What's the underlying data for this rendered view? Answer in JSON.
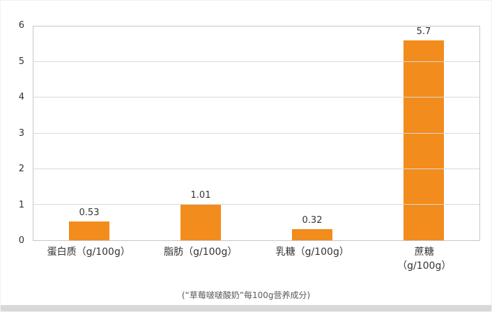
{
  "chart_data": {
    "type": "bar",
    "categories": [
      "蛋白质（g/100g）",
      "脂肪（g/100g）",
      "乳糖（g/100g）",
      "蔗糖\n（g/100g）"
    ],
    "values": [
      0.53,
      1.01,
      0.32,
      5.7
    ],
    "value_labels": [
      "0.53",
      "1.01",
      "0.32",
      "5.7"
    ],
    "title": "",
    "xlabel": "",
    "ylabel": "",
    "ylim": [
      0,
      6
    ],
    "yticks": [
      0,
      1,
      2,
      3,
      4,
      5,
      6
    ],
    "grid": true,
    "legend": "none",
    "bar_color": "#F28C1C",
    "grid_color": "#d9d9d9",
    "axis_text_color": "#333333"
  },
  "caption": "(“草莓啵啵酸奶”每100g营养成分)"
}
